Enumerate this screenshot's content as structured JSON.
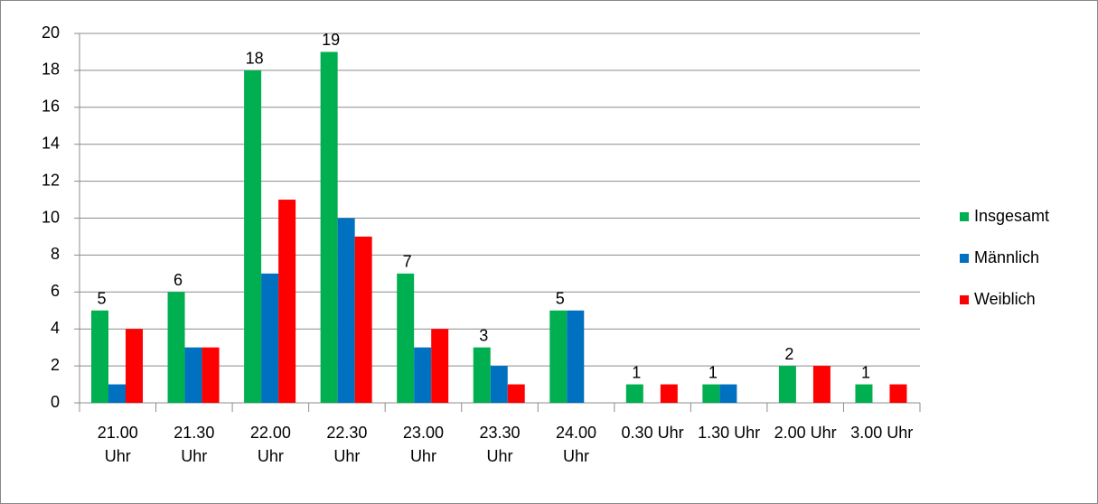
{
  "chart_data": {
    "type": "bar",
    "categories": [
      "21.00 Uhr",
      "21.30 Uhr",
      "22.00 Uhr",
      "22.30 Uhr",
      "23.00 Uhr",
      "23.30 Uhr",
      "24.00 Uhr",
      "0.30 Uhr",
      "1.30 Uhr",
      "2.00 Uhr",
      "3.00 Uhr"
    ],
    "series": [
      {
        "name": "Insgesamt",
        "color": "#00b050",
        "values": [
          5,
          6,
          18,
          19,
          7,
          3,
          5,
          1,
          1,
          2,
          1
        ],
        "show_labels": true
      },
      {
        "name": "Männlich",
        "color": "#0070c0",
        "values": [
          1,
          3,
          7,
          10,
          3,
          2,
          5,
          0,
          1,
          0,
          0
        ],
        "show_labels": false
      },
      {
        "name": "Weiblich",
        "color": "#ff0000",
        "values": [
          4,
          3,
          11,
          9,
          4,
          1,
          0,
          1,
          0,
          2,
          1
        ],
        "show_labels": false
      }
    ],
    "ylim": [
      0,
      20
    ],
    "yticks": [
      0,
      2,
      4,
      6,
      8,
      10,
      12,
      14,
      16,
      18,
      20
    ],
    "grid": true,
    "legend": "right"
  }
}
